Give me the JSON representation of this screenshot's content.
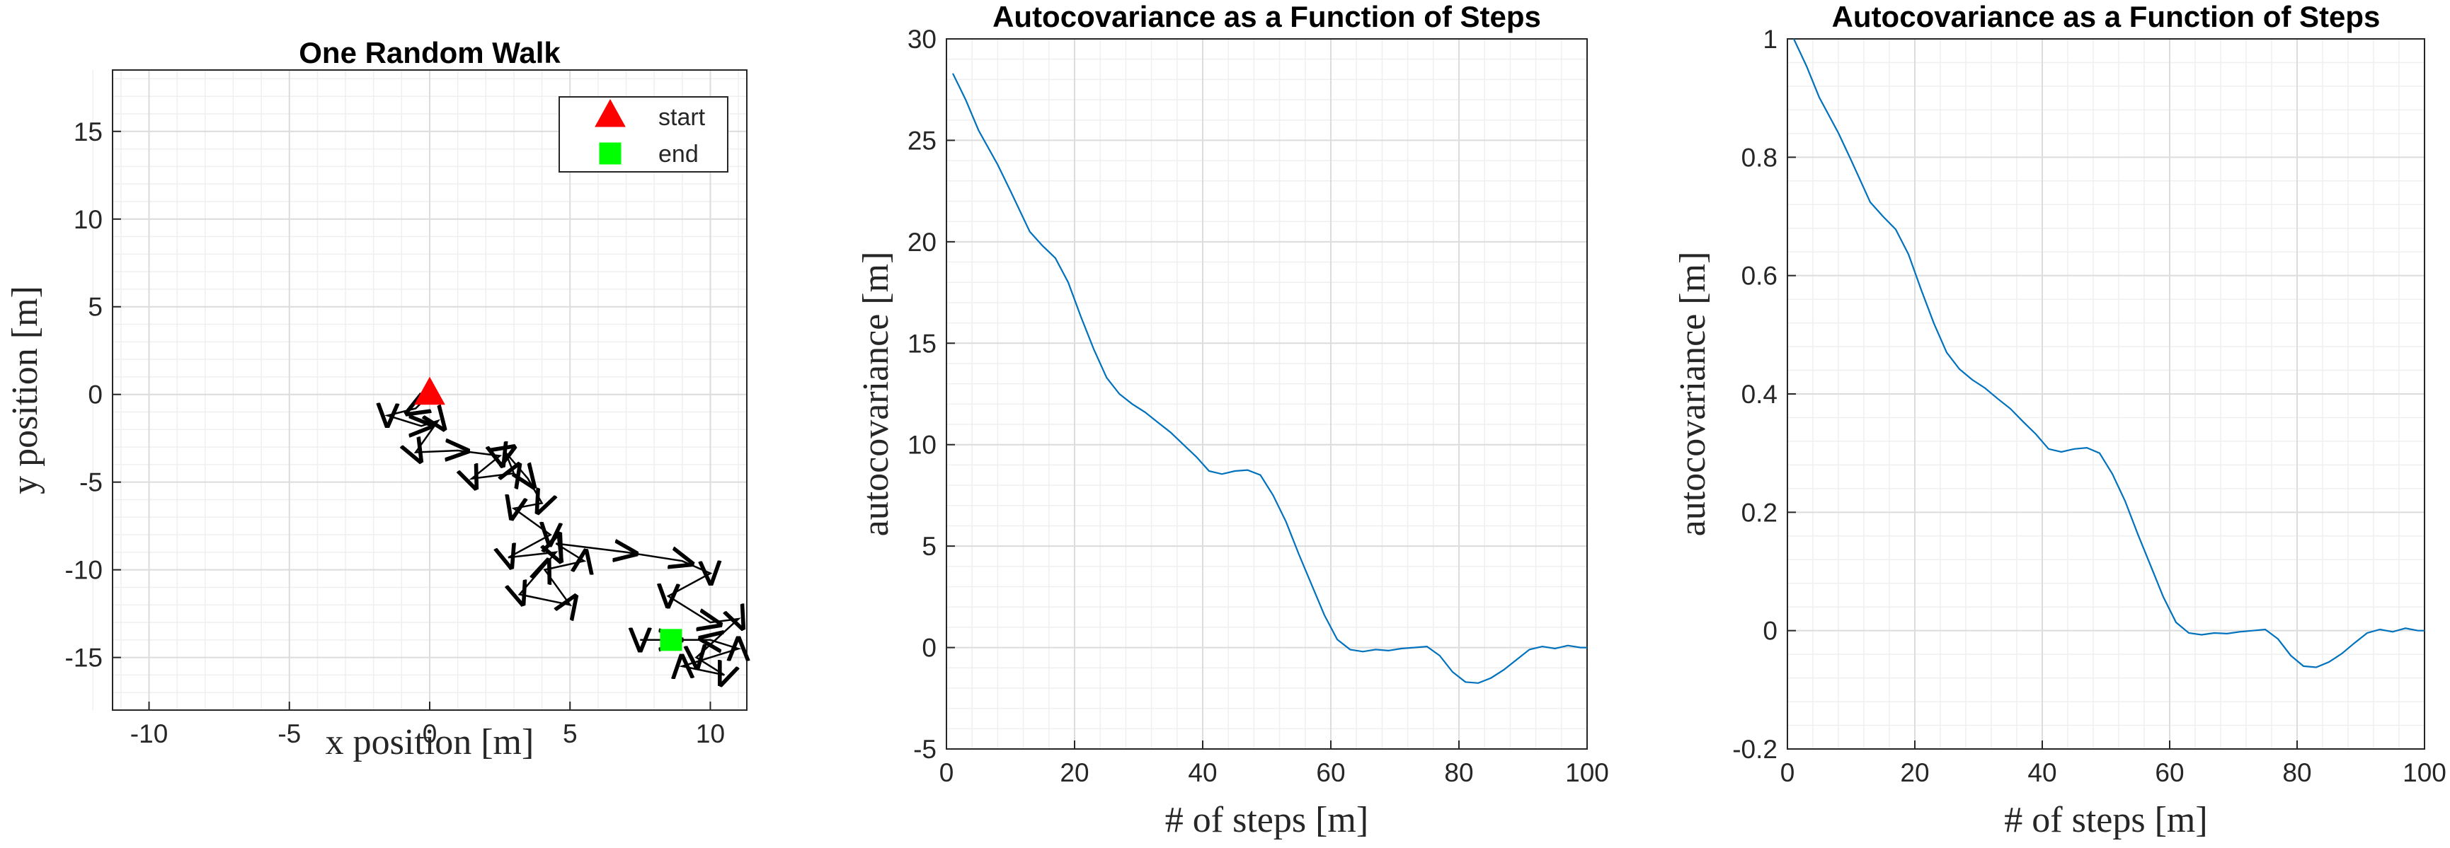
{
  "chart_data": [
    {
      "type": "line",
      "title": "One Random Walk",
      "xlabel": "x position [m]",
      "ylabel": "y position [m]",
      "xlim": [
        -11.3,
        11.3
      ],
      "xticks": [
        -10,
        -5,
        0,
        5,
        10
      ],
      "ylim": [
        -18,
        18.5
      ],
      "yticks": [
        -15,
        -10,
        -5,
        0,
        5,
        10,
        15
      ],
      "grid": true,
      "minor_grid": 5,
      "legend": "upper right",
      "series": [
        {
          "color": "#000000",
          "marker": "arrow",
          "x": [
            0,
            -0.5,
            -1.5,
            -0.3,
            0.3,
            -0.5,
            1,
            2.5,
            1.5,
            3,
            2.7,
            3.5,
            4,
            3,
            4.3,
            2.8,
            4.5,
            3.2,
            5,
            4.1,
            5.5,
            4.5,
            7,
            9,
            10,
            8.5,
            10,
            11,
            9.5,
            10.5,
            9,
            11,
            10,
            7.5,
            8.6
          ],
          "values": [
            0,
            -0.8,
            -1.2,
            -1.8,
            -1.5,
            -3.3,
            -3.2,
            -3.5,
            -4.8,
            -4.5,
            -3.3,
            -4.8,
            -6.2,
            -6.5,
            -8,
            -9.3,
            -9,
            -11.4,
            -12,
            -10,
            -9.5,
            -8.5,
            -9,
            -9.5,
            -10.2,
            -11.5,
            -13,
            -12.8,
            -15,
            -16,
            -15.5,
            -14.5,
            -14,
            -14,
            -14
          ]
        },
        {
          "name": "start",
          "color": "#ff0000",
          "marker": "triangle",
          "x": [
            0
          ],
          "values": [
            0
          ]
        },
        {
          "name": "end",
          "color": "#00ff00",
          "marker": "square",
          "x": [
            8.6
          ],
          "values": [
            -14
          ]
        }
      ]
    },
    {
      "type": "line",
      "title": "Autocovariance as a Function of Steps",
      "xlabel": "# of steps [m]",
      "ylabel": "autocovariance [m]",
      "xlim": [
        0,
        100
      ],
      "xticks": [
        0,
        20,
        40,
        60,
        80,
        100
      ],
      "ylim": [
        -5,
        30
      ],
      "yticks": [
        -5,
        0,
        5,
        10,
        15,
        20,
        25,
        30
      ],
      "grid": true,
      "minor_grid": 5,
      "series": [
        {
          "color": "#0072bd",
          "marker": "none",
          "x": [
            1,
            3,
            5,
            8,
            10,
            13,
            15,
            17,
            19,
            21,
            23,
            25,
            27,
            29,
            31,
            33,
            35,
            37,
            39,
            41,
            43,
            45,
            47,
            49,
            51,
            53,
            55,
            57,
            59,
            61,
            63,
            65,
            67,
            69,
            71,
            73,
            75,
            77,
            79,
            81,
            83,
            85,
            87,
            89,
            91,
            93,
            95,
            97,
            99,
            100
          ],
          "values": [
            28.3,
            27,
            25.5,
            23.8,
            22.5,
            20.5,
            19.8,
            19.2,
            18,
            16.3,
            14.7,
            13.3,
            12.5,
            12,
            11.6,
            11.1,
            10.6,
            10,
            9.4,
            8.7,
            8.55,
            8.7,
            8.75,
            8.5,
            7.5,
            6.2,
            4.6,
            3.1,
            1.6,
            0.4,
            -0.1,
            -0.2,
            -0.1,
            -0.15,
            -0.05,
            0,
            0.05,
            -0.4,
            -1.2,
            -1.7,
            -1.75,
            -1.5,
            -1.1,
            -0.6,
            -0.1,
            0.05,
            -0.05,
            0.1,
            0,
            0
          ]
        }
      ]
    },
    {
      "type": "line",
      "title": "Autocovariance as a Function of Steps",
      "xlabel": "# of steps [m]",
      "ylabel": "autocovariance [m]",
      "xlim": [
        0,
        100
      ],
      "xticks": [
        0,
        20,
        40,
        60,
        80,
        100
      ],
      "ylim": [
        -0.2,
        1
      ],
      "yticks": [
        -0.2,
        0,
        0.2,
        0.4,
        0.6,
        0.8,
        1
      ],
      "grid": true,
      "minor_grid": 5,
      "series": [
        {
          "color": "#0072bd",
          "marker": "none",
          "x": [
            1,
            3,
            5,
            8,
            10,
            13,
            15,
            17,
            19,
            21,
            23,
            25,
            27,
            29,
            31,
            33,
            35,
            37,
            39,
            41,
            43,
            45,
            47,
            49,
            51,
            53,
            55,
            57,
            59,
            61,
            63,
            65,
            67,
            69,
            71,
            73,
            75,
            77,
            79,
            81,
            83,
            85,
            87,
            89,
            91,
            93,
            95,
            97,
            99,
            100
          ],
          "values": [
            1,
            0.954,
            0.901,
            0.841,
            0.795,
            0.724,
            0.7,
            0.678,
            0.636,
            0.576,
            0.519,
            0.47,
            0.442,
            0.424,
            0.41,
            0.392,
            0.375,
            0.353,
            0.332,
            0.307,
            0.302,
            0.307,
            0.309,
            0.3,
            0.265,
            0.219,
            0.163,
            0.11,
            0.057,
            0.014,
            -0.004,
            -0.007,
            -0.004,
            -0.005,
            -0.002,
            0,
            0.002,
            -0.014,
            -0.042,
            -0.06,
            -0.062,
            -0.053,
            -0.039,
            -0.021,
            -0.004,
            0.002,
            -0.002,
            0.004,
            0,
            0
          ]
        }
      ]
    }
  ]
}
